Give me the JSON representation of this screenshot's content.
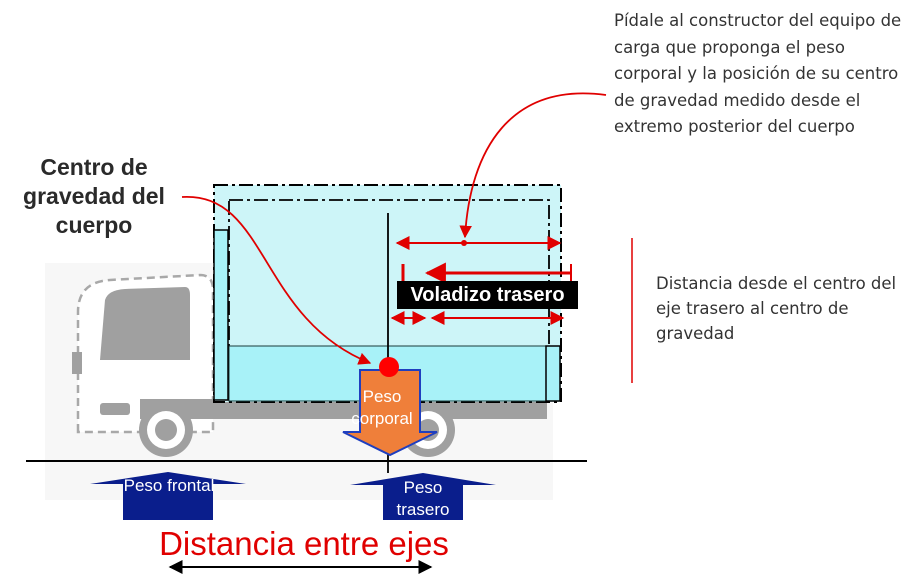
{
  "labels": {
    "center_of_gravity": "Centro de gravedad del cuerpo",
    "note_top": "Pídale al constructor del equipo de carga que proponga el peso corporal y la posición de su centro de gravedad medido desde el extremo posterior del cuerpo",
    "note_right": "Distancia desde el centro del eje trasero al centro de gravedad",
    "rear_overhang": "Voladizo trasero",
    "body_weight": "Peso corporal",
    "front_weight": "Peso frontal",
    "rear_weight": "Peso trasero",
    "wheelbase": "Distancia entre ejes"
  },
  "colors": {
    "body_fill": "#cdf5f8",
    "body_lower_fill": "#a8f2f8",
    "truck_gray": "#a0a0a0",
    "accent_red": "#e00000",
    "load_arrow_orange": "#ef7f3a",
    "support_arrow_navy": "#0a1e8c",
    "ground_line": "#000000"
  }
}
